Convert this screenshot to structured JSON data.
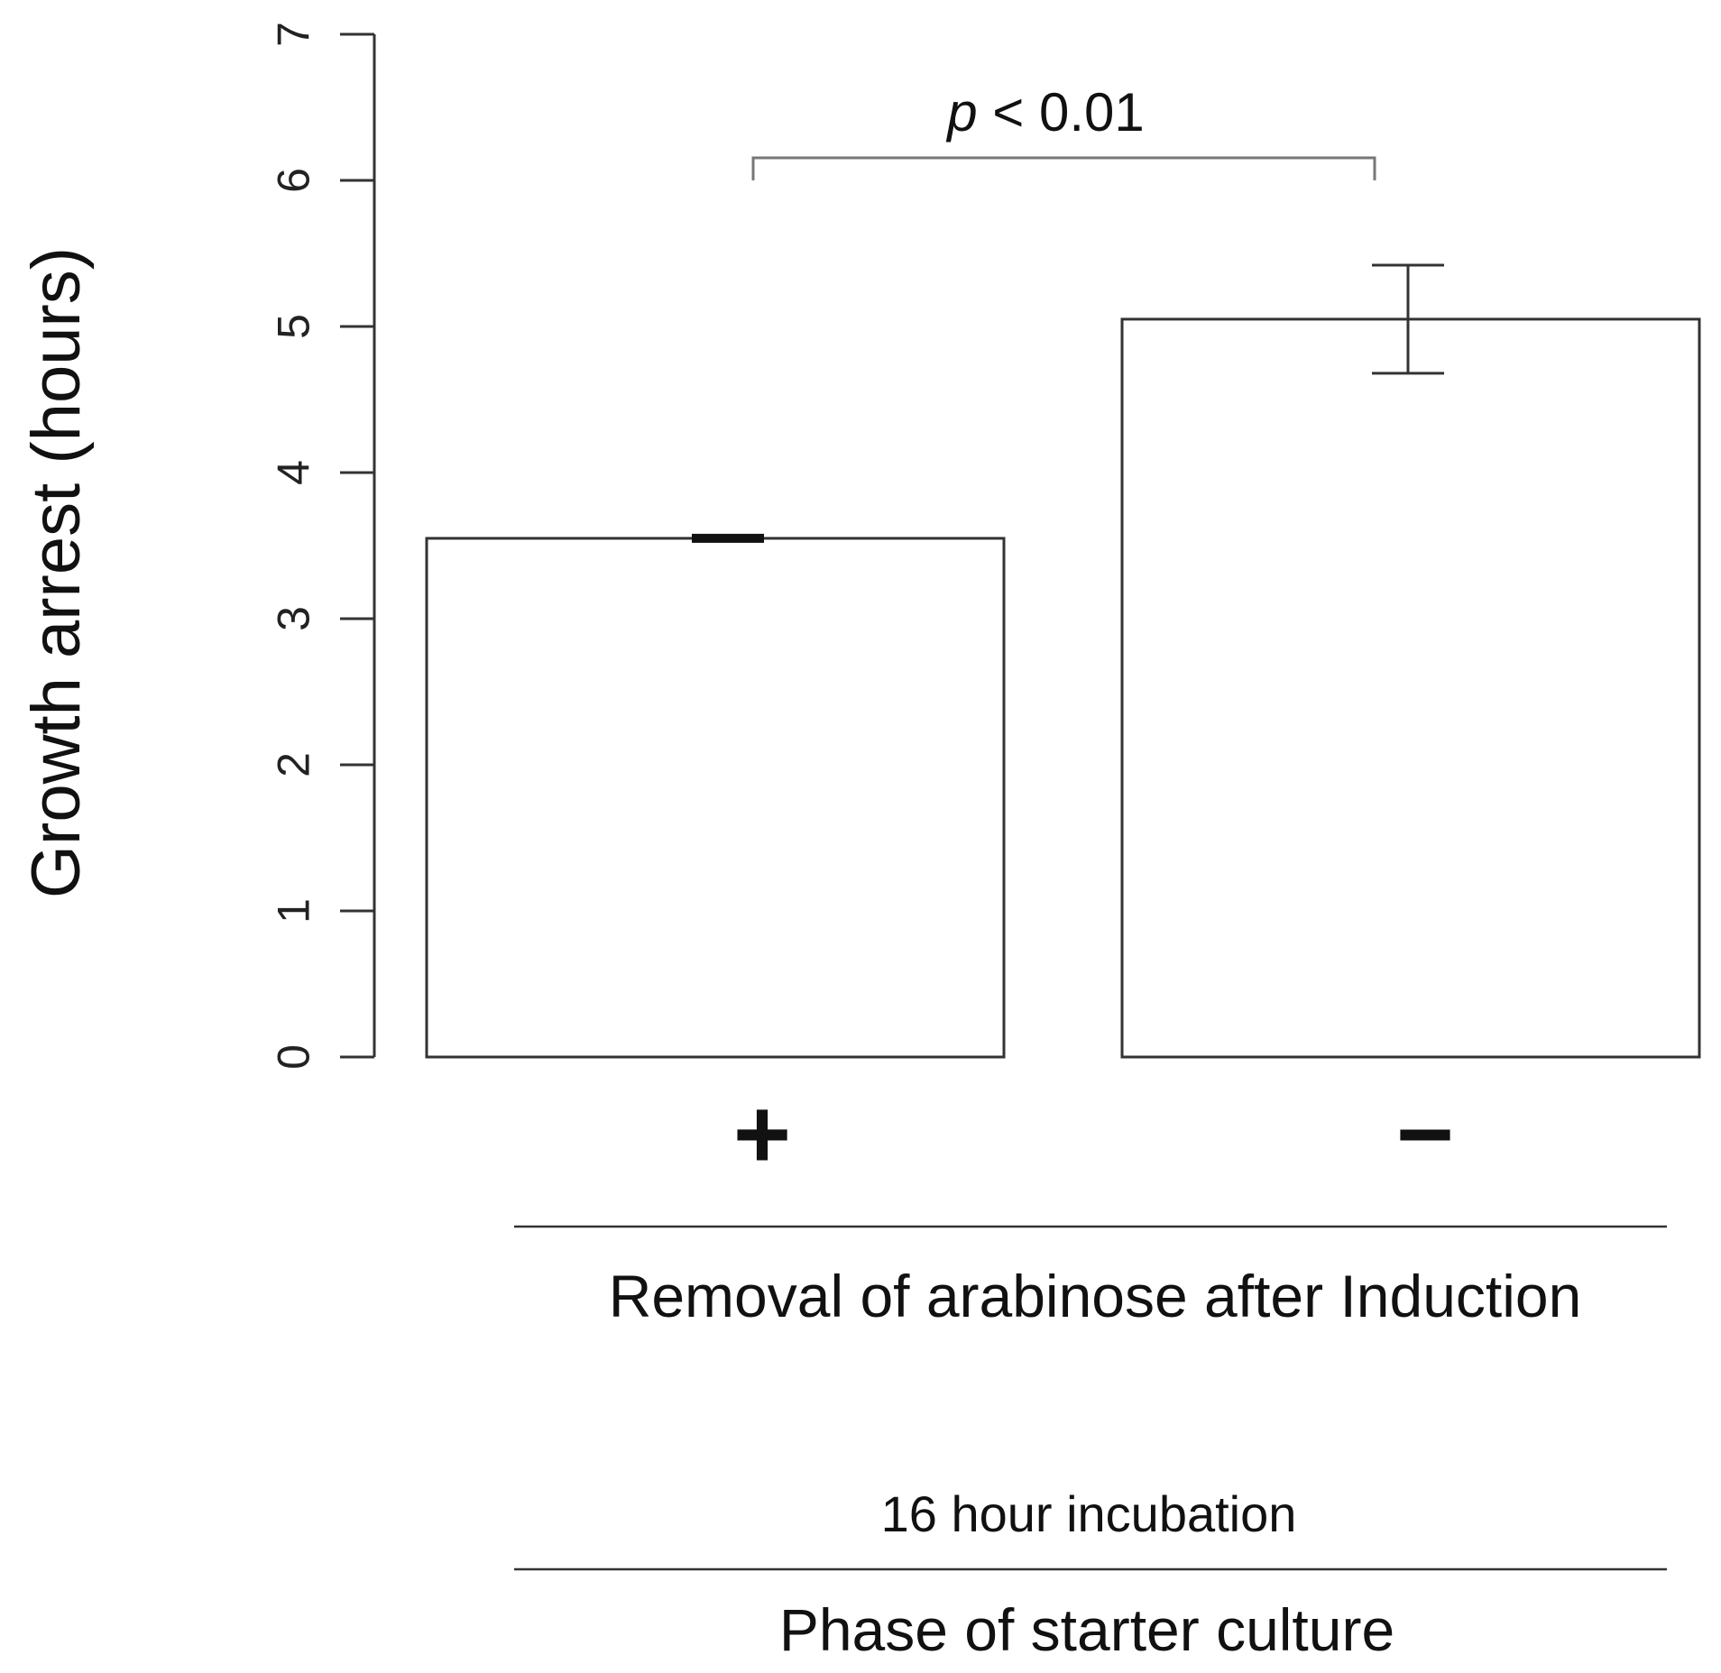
{
  "chart_data": {
    "type": "bar",
    "ylabel": "Growth arrest (hours)",
    "ylim": [
      0,
      7
    ],
    "yticks": [
      "0",
      "1",
      "2",
      "3",
      "4",
      "5",
      "6",
      "7"
    ],
    "categories": [
      "+",
      "−"
    ],
    "values": [
      3.55,
      5.05
    ],
    "errors": [
      0.02,
      0.37
    ],
    "bar_fill": "#ffffff",
    "bar_stroke": "#333333",
    "significance": {
      "p_italic": "p",
      "text": " < 0.01",
      "between": [
        0,
        1
      ]
    },
    "group_label": "Removal of arabinose after Induction",
    "sub_label": "16 hour incubation",
    "outer_label": "Phase of starter culture"
  }
}
